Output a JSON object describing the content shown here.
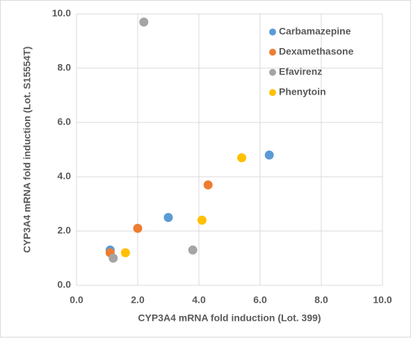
{
  "chart_data": {
    "type": "scatter",
    "x_label": "CYP3A4 mRNA fold induction (Lot. 399)",
    "y_label": "CYP3A4 mRNA fold induction (Lot. S15554T)",
    "xlim": [
      0,
      10
    ],
    "ylim": [
      0,
      10
    ],
    "xticks": [
      {
        "value": 0,
        "label": "0.0"
      },
      {
        "value": 2,
        "label": "2.0"
      },
      {
        "value": 4,
        "label": "4.0"
      },
      {
        "value": 6,
        "label": "6.0"
      },
      {
        "value": 8,
        "label": "8.0"
      },
      {
        "value": 10,
        "label": "10.0"
      }
    ],
    "yticks": [
      {
        "value": 0,
        "label": "0.0"
      },
      {
        "value": 2,
        "label": "2.0"
      },
      {
        "value": 4,
        "label": "4.0"
      },
      {
        "value": 6,
        "label": "6.0"
      },
      {
        "value": 8,
        "label": "8.0"
      },
      {
        "value": 10,
        "label": "10.0"
      }
    ],
    "grid": true,
    "legend": "upper right",
    "series": [
      {
        "name": "Carbamazepine",
        "color": "#5b9bd5",
        "x": [
          1.1,
          3.0,
          6.3
        ],
        "values": [
          1.3,
          2.5,
          4.8
        ]
      },
      {
        "name": "Dexamethasone",
        "color": "#ed7d31",
        "x": [
          1.1,
          2.0,
          4.3
        ],
        "values": [
          1.2,
          2.1,
          3.7
        ]
      },
      {
        "name": "Efavirenz",
        "color": "#a5a5a5",
        "x": [
          2.2,
          1.2,
          3.8
        ],
        "values": [
          9.7,
          1.0,
          1.3
        ]
      },
      {
        "name": "Phenytoin",
        "color": "#ffc000",
        "x": [
          1.6,
          4.1,
          5.4
        ],
        "values": [
          1.2,
          2.4,
          4.7
        ]
      }
    ]
  }
}
